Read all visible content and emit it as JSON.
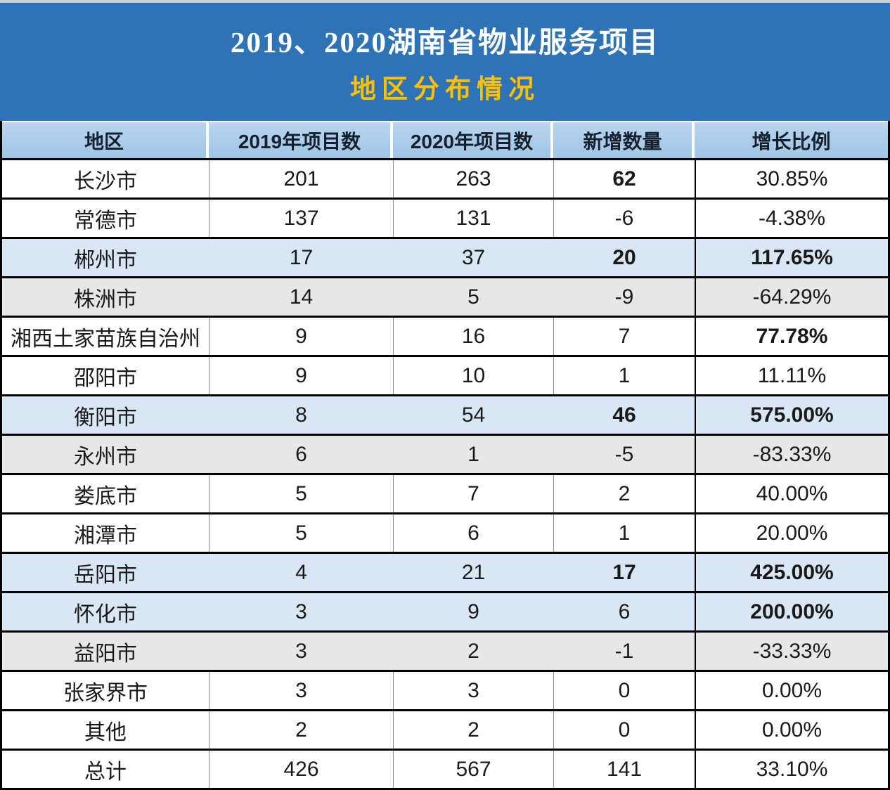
{
  "colors": {
    "banner_bg": "#2E73B5",
    "title_color": "#FFFFFF",
    "subtitle_color": "#FFC000",
    "edge_strip": "#CDD1D5",
    "header_bg": "#9FC5E7",
    "header_text": "#16212D",
    "row_white": "#FFFFFF",
    "row_blue": "#D9E7F4",
    "row_gray": "#E8E7E7",
    "border_dark": "#000000",
    "border_light": "#8F8F8F",
    "body_text": "#1A1A1A"
  },
  "chart_data": {
    "type": "table",
    "title": "2019、2020湖南省物业服务项目",
    "subtitle": "地区分布情况",
    "columns": [
      "地区",
      "2019年项目数",
      "2020年项目数",
      "新增数量",
      "增长比例"
    ],
    "rows": [
      {
        "region": "长沙市",
        "projects_2019": "201",
        "projects_2020": "263",
        "new_count": "62",
        "growth_ratio": "30.85%",
        "highlight": "white",
        "bold_new": true,
        "bold_ratio": false
      },
      {
        "region": "常德市",
        "projects_2019": "137",
        "projects_2020": "131",
        "new_count": "-6",
        "growth_ratio": "-4.38%",
        "highlight": "white",
        "bold_new": false,
        "bold_ratio": false
      },
      {
        "region": "郴州市",
        "projects_2019": "17",
        "projects_2020": "37",
        "new_count": "20",
        "growth_ratio": "117.65%",
        "highlight": "blue",
        "bold_new": true,
        "bold_ratio": true
      },
      {
        "region": "株洲市",
        "projects_2019": "14",
        "projects_2020": "5",
        "new_count": "-9",
        "growth_ratio": "-64.29%",
        "highlight": "gray",
        "bold_new": false,
        "bold_ratio": false
      },
      {
        "region": "湘西土家苗族自治州",
        "projects_2019": "9",
        "projects_2020": "16",
        "new_count": "7",
        "growth_ratio": "77.78%",
        "highlight": "white",
        "bold_new": false,
        "bold_ratio": true
      },
      {
        "region": "邵阳市",
        "projects_2019": "9",
        "projects_2020": "10",
        "new_count": "1",
        "growth_ratio": "11.11%",
        "highlight": "white",
        "bold_new": false,
        "bold_ratio": false
      },
      {
        "region": "衡阳市",
        "projects_2019": "8",
        "projects_2020": "54",
        "new_count": "46",
        "growth_ratio": "575.00%",
        "highlight": "blue",
        "bold_new": true,
        "bold_ratio": true
      },
      {
        "region": "永州市",
        "projects_2019": "6",
        "projects_2020": "1",
        "new_count": "-5",
        "growth_ratio": "-83.33%",
        "highlight": "gray",
        "bold_new": false,
        "bold_ratio": false
      },
      {
        "region": "娄底市",
        "projects_2019": "5",
        "projects_2020": "7",
        "new_count": "2",
        "growth_ratio": "40.00%",
        "highlight": "white",
        "bold_new": false,
        "bold_ratio": false
      },
      {
        "region": "湘潭市",
        "projects_2019": "5",
        "projects_2020": "6",
        "new_count": "1",
        "growth_ratio": "20.00%",
        "highlight": "white",
        "bold_new": false,
        "bold_ratio": false
      },
      {
        "region": "岳阳市",
        "projects_2019": "4",
        "projects_2020": "21",
        "new_count": "17",
        "growth_ratio": "425.00%",
        "highlight": "blue",
        "bold_new": true,
        "bold_ratio": true
      },
      {
        "region": "怀化市",
        "projects_2019": "3",
        "projects_2020": "9",
        "new_count": "6",
        "growth_ratio": "200.00%",
        "highlight": "blue",
        "bold_new": false,
        "bold_ratio": true
      },
      {
        "region": "益阳市",
        "projects_2019": "3",
        "projects_2020": "2",
        "new_count": "-1",
        "growth_ratio": "-33.33%",
        "highlight": "gray",
        "bold_new": false,
        "bold_ratio": false
      },
      {
        "region": "张家界市",
        "projects_2019": "3",
        "projects_2020": "3",
        "new_count": "0",
        "growth_ratio": "0.00%",
        "highlight": "white",
        "bold_new": false,
        "bold_ratio": false
      },
      {
        "region": "其他",
        "projects_2019": "2",
        "projects_2020": "2",
        "new_count": "0",
        "growth_ratio": "0.00%",
        "highlight": "white",
        "bold_new": false,
        "bold_ratio": false
      },
      {
        "region": "总计",
        "projects_2019": "426",
        "projects_2020": "567",
        "new_count": "141",
        "growth_ratio": "33.10%",
        "highlight": "white",
        "bold_new": false,
        "bold_ratio": false
      }
    ]
  }
}
